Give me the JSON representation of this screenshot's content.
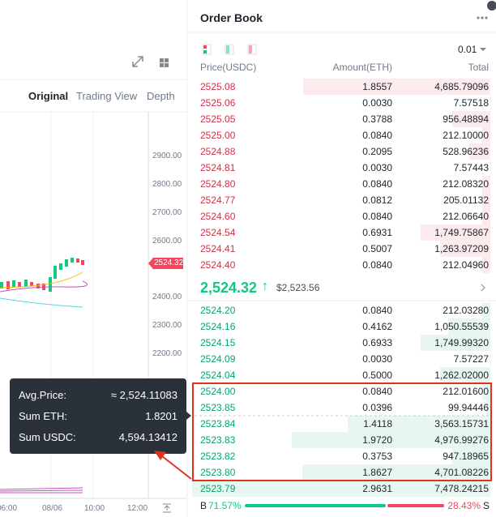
{
  "chart_panel": {
    "tabs": [
      "Original",
      "Trading View",
      "Depth"
    ],
    "price_axis": [
      "2900.00",
      "2800.00",
      "2700.00",
      "2600.00",
      "2400.00",
      "2300.00",
      "2200.00"
    ],
    "last_price_tag": "2524.32",
    "time_axis": [
      "06:00",
      "08/06",
      "10:00",
      "12:00"
    ],
    "tooltip": {
      "rows": [
        [
          "Avg.Price:",
          "≈ 2,524.11083"
        ],
        [
          "Sum ETH:",
          "1.8201"
        ],
        [
          "Sum USDC:",
          "4,594.13412"
        ]
      ]
    }
  },
  "order_book": {
    "title": "Order Book",
    "precision": "0.01",
    "columns": [
      "Price(USDC)",
      "Amount(ETH)",
      "Total"
    ],
    "asks": [
      [
        "2525.08",
        "1.8557",
        "4,685.79096"
      ],
      [
        "2525.06",
        "0.0030",
        "7.57518"
      ],
      [
        "2525.05",
        "0.3788",
        "956.48894"
      ],
      [
        "2525.00",
        "0.0840",
        "212.10000"
      ],
      [
        "2524.88",
        "0.2095",
        "528.96236"
      ],
      [
        "2524.81",
        "0.0030",
        "7.57443"
      ],
      [
        "2524.80",
        "0.0840",
        "212.08320"
      ],
      [
        "2524.77",
        "0.0812",
        "205.01132"
      ],
      [
        "2524.60",
        "0.0840",
        "212.06640"
      ],
      [
        "2524.54",
        "0.6931",
        "1,749.75867"
      ],
      [
        "2524.41",
        "0.5007",
        "1,263.97209"
      ],
      [
        "2524.40",
        "0.0840",
        "212.04960"
      ]
    ],
    "mid": {
      "price": "2,524.32",
      "arrow": "↑",
      "usd": "$2,523.56"
    },
    "bids": [
      [
        "2524.20",
        "0.0840",
        "212.03280"
      ],
      [
        "2524.16",
        "0.4162",
        "1,050.55539"
      ],
      [
        "2524.15",
        "0.6933",
        "1,749.99320"
      ],
      [
        "2524.09",
        "0.0030",
        "7.57227"
      ],
      [
        "2524.04",
        "0.5000",
        "1,262.02000"
      ],
      [
        "2524.00",
        "0.0840",
        "212.01600"
      ],
      [
        "2523.85",
        "0.0396",
        "99.94446"
      ],
      [
        "2523.84",
        "1.4118",
        "3,563.15731"
      ],
      [
        "2523.83",
        "1.9720",
        "4,976.99276"
      ],
      [
        "2523.82",
        "0.3753",
        "947.18965"
      ],
      [
        "2523.80",
        "1.8627",
        "4,701.08226"
      ],
      [
        "2523.79",
        "2.9631",
        "7,478.24215"
      ]
    ],
    "ratio": {
      "buy_label": "B",
      "buy": "71.57%",
      "sell": "28.43%",
      "sell_label": "S"
    }
  }
}
